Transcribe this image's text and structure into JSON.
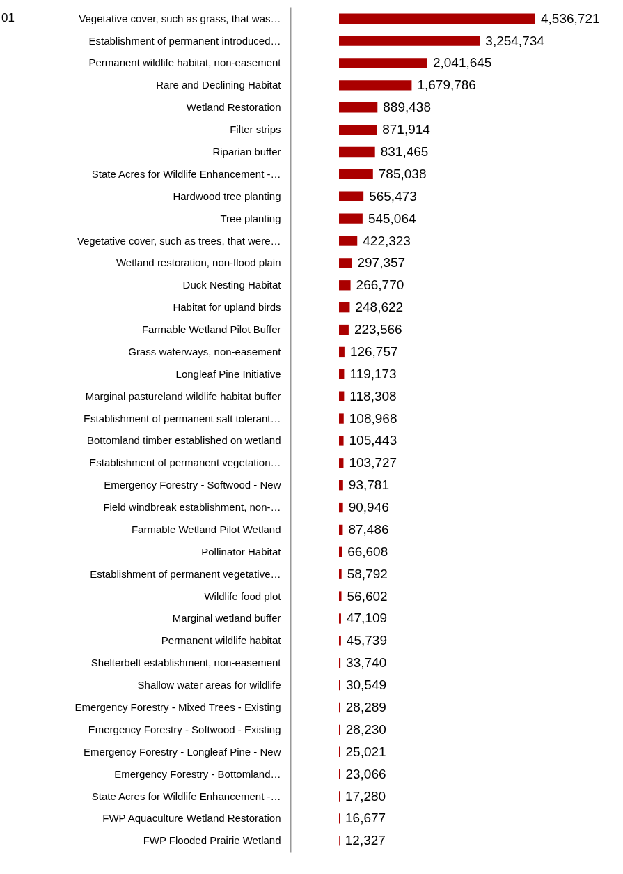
{
  "chart_data": {
    "type": "bar",
    "orientation": "horizontal",
    "grid": false,
    "tick_labels": "y",
    "value_labels": [
      "4,536,721",
      "3,254,734",
      "2,041,645",
      "1,679,786",
      "889,438",
      "871,914",
      "831,465",
      "785,038",
      "565,473",
      "545,064",
      "422,323",
      "297,357",
      "266,770",
      "248,622",
      "223,566",
      "126,757",
      "119,173",
      "118,308",
      "108,968",
      "105,443",
      "103,727",
      "93,781",
      "90,946",
      "87,486",
      "66,608",
      "58,792",
      "56,602",
      "47,109",
      "45,739",
      "33,740",
      "30,549",
      "28,289",
      "28,230",
      "25,021",
      "23,066",
      "17,280",
      "16,677",
      "12,327"
    ],
    "annotations": [
      "01"
    ],
    "categories": [
      "Vegetative cover, such as grass, that was…",
      "Establishment of permanent introduced…",
      "Permanent wildlife habitat, non-easement",
      "Rare and Declining Habitat",
      "Wetland Restoration",
      "Filter strips",
      "Riparian buffer",
      "State Acres for Wildlife Enhancement -…",
      "Hardwood tree planting",
      "Tree planting",
      "Vegetative cover, such as trees, that were…",
      "Wetland restoration, non-flood plain",
      "Duck Nesting Habitat",
      "Habitat for upland birds",
      "Farmable Wetland Pilot Buffer",
      "Grass waterways, non-easement",
      "Longleaf Pine Initiative",
      "Marginal pastureland wildlife habitat buffer",
      "Establishment of permanent salt tolerant…",
      "Bottomland timber established on wetland",
      "Establishment of permanent vegetation…",
      "Emergency Forestry - Softwood - New",
      "Field windbreak establishment, non-…",
      "Farmable Wetland Pilot Wetland",
      "Pollinator Habitat",
      "Establishment of permanent vegetative…",
      "Wildlife food plot",
      "Marginal wetland buffer",
      "Permanent wildlife habitat",
      "Shelterbelt establishment, non-easement",
      "Shallow water areas for wildlife",
      "Emergency Forestry - Mixed Trees - Existing",
      "Emergency Forestry - Softwood - Existing",
      "Emergency Forestry - Longleaf Pine - New",
      "Emergency Forestry - Bottomland…",
      "State Acres for Wildlife Enhancement -…",
      "FWP Aquaculture Wetland Restoration",
      "FWP Flooded Prairie Wetland"
    ],
    "values": [
      4536721,
      3254734,
      2041645,
      1679786,
      889438,
      871914,
      831465,
      785038,
      565473,
      545064,
      422323,
      297357,
      266770,
      248622,
      223566,
      126757,
      119173,
      118308,
      108968,
      105443,
      103727,
      93781,
      90946,
      87486,
      66608,
      58792,
      56602,
      47109,
      45739,
      33740,
      30549,
      28289,
      28230,
      25021,
      23066,
      17280,
      16677,
      12327
    ],
    "color": "#aa0000"
  }
}
